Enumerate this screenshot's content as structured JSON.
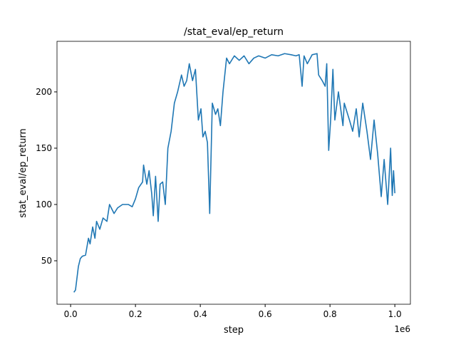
{
  "chart_data": {
    "type": "line",
    "title": "/stat_eval/ep_return",
    "xlabel": "step",
    "ylabel": "stat_eval/ep_return",
    "x_offset_label": "1e6",
    "color": "#1f77b4",
    "x": [
      10000,
      15000,
      24000,
      30000,
      36000,
      46000,
      55000,
      60000,
      68000,
      75000,
      80000,
      90000,
      100000,
      112000,
      120000,
      134000,
      145000,
      160000,
      178000,
      190000,
      200000,
      210000,
      222000,
      225000,
      235000,
      242000,
      250000,
      255000,
      262000,
      270000,
      276000,
      284000,
      292000,
      300000,
      310000,
      320000,
      330000,
      342000,
      350000,
      358000,
      366000,
      376000,
      385000,
      394000,
      402000,
      408000,
      415000,
      422000,
      429000,
      437000,
      447000,
      454000,
      462000,
      470000,
      481000,
      490000,
      505000,
      520000,
      535000,
      550000,
      565000,
      580000,
      600000,
      620000,
      640000,
      660000,
      680000,
      695000,
      705000,
      714000,
      720000,
      730000,
      745000,
      760000,
      765000,
      776000,
      785000,
      790000,
      796000,
      802000,
      809000,
      815000,
      826000,
      840000,
      844000,
      860000,
      870000,
      881000,
      890000,
      901000,
      914000,
      925000,
      936000,
      947000,
      958000,
      967000,
      978000,
      987000,
      992000,
      996000,
      1000000
    ],
    "values": [
      22,
      24,
      45,
      52,
      54,
      55,
      70,
      65,
      80,
      70,
      85,
      78,
      88,
      85,
      100,
      92,
      97,
      100,
      100,
      98,
      105,
      115,
      120,
      135,
      118,
      130,
      110,
      90,
      125,
      85,
      118,
      120,
      100,
      150,
      165,
      190,
      200,
      215,
      205,
      210,
      225,
      210,
      220,
      175,
      185,
      160,
      165,
      155,
      92,
      190,
      180,
      185,
      170,
      200,
      230,
      225,
      232,
      228,
      232,
      225,
      230,
      232,
      230,
      233,
      232,
      234,
      233,
      232,
      233,
      205,
      232,
      225,
      233,
      234,
      215,
      210,
      205,
      225,
      148,
      175,
      220,
      175,
      200,
      170,
      190,
      175,
      165,
      185,
      160,
      190,
      165,
      140,
      175,
      145,
      107,
      140,
      100,
      150,
      108,
      130,
      110
    ],
    "xlim": [
      -42000,
      1048000
    ],
    "ylim": [
      11.4,
      244.9
    ],
    "xticks": [
      {
        "value": 0,
        "label": "0.0"
      },
      {
        "value": 200000,
        "label": "0.2"
      },
      {
        "value": 400000,
        "label": "0.4"
      },
      {
        "value": 600000,
        "label": "0.6"
      },
      {
        "value": 800000,
        "label": "0.8"
      },
      {
        "value": 1000000,
        "label": "1.0"
      }
    ],
    "yticks": [
      50,
      100,
      150,
      200
    ]
  }
}
